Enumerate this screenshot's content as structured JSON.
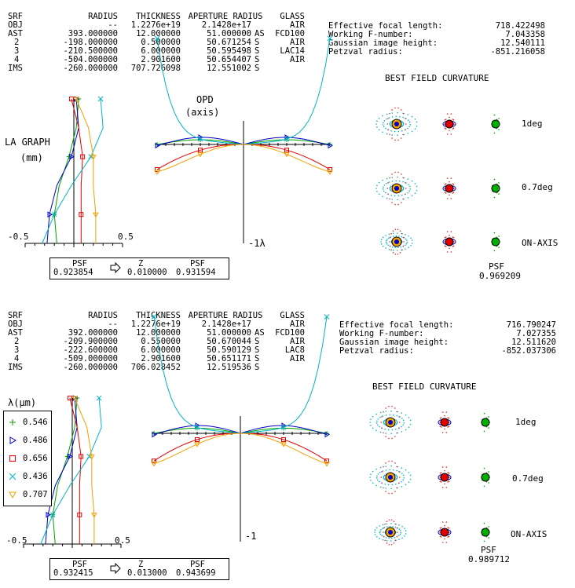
{
  "headers": {
    "srf": "SRF",
    "radius": "RADIUS",
    "thickness": "THICKNESS",
    "aperture": "APERTURE RADIUS",
    "glass": "GLASS"
  },
  "top": {
    "rows": [
      {
        "srf": "OBJ",
        "radius": "--",
        "thickness": "1.2276e+19",
        "aperture": "2.1428e+17",
        "sfx": "",
        "glass": "AIR"
      },
      {
        "srf": "AST",
        "radius": "393.000000",
        "thickness": "12.000000",
        "aperture": "51.000000",
        "sfx": "AS",
        "glass": "FCD100"
      },
      {
        "srf": "2",
        "radius": "-198.000000",
        "thickness": "0.500000",
        "aperture": "50.671254",
        "sfx": "S",
        "glass": "AIR"
      },
      {
        "srf": "3",
        "radius": "-210.500000",
        "thickness": "6.000000",
        "aperture": "50.595498",
        "sfx": "S",
        "glass": "LAC14"
      },
      {
        "srf": "4",
        "radius": "-504.000000",
        "thickness": "2.901600",
        "aperture": "50.654407",
        "sfx": "S",
        "glass": "AIR"
      },
      {
        "srf": "IMS",
        "radius": "-260.000000",
        "thickness": "707.726098",
        "aperture": "12.551002",
        "sfx": "S",
        "glass": ""
      }
    ],
    "summary": [
      {
        "label": "Effective focal length:",
        "value": "718.422498"
      },
      {
        "label": "Working F-number:",
        "value": "7.043358"
      },
      {
        "label": "Gaussian image height:",
        "value": "12.540111"
      },
      {
        "label": "Petzval radius:",
        "value": "-851.216058"
      }
    ],
    "field_title": "BEST FIELD CURVATURE",
    "la_title": "LA GRAPH",
    "la_unit": "(mm)",
    "opd_title": "OPD",
    "opd_sub": "(axis)",
    "axis_left": "-0.5",
    "axis_right": "0.5",
    "opd_scale": "-1λ",
    "field_labels": [
      "1deg",
      "0.7deg",
      "ON-AXIS"
    ],
    "psf_head": {
      "psf1": "PSF",
      "z": "Z",
      "psf2": "PSF"
    },
    "psf_vals": {
      "psf1": "0.923854",
      "z": "0.010000",
      "psf2": "0.931594"
    },
    "psf_right_label": "PSF",
    "psf_right_value": "0.969209"
  },
  "bottom": {
    "rows": [
      {
        "srf": "OBJ",
        "radius": "--",
        "thickness": "1.2276e+19",
        "aperture": "2.1428e+17",
        "sfx": "",
        "glass": "AIR"
      },
      {
        "srf": "AST",
        "radius": "392.000000",
        "thickness": "12.000000",
        "aperture": "51.000000",
        "sfx": "AS",
        "glass": "FCD100"
      },
      {
        "srf": "2",
        "radius": "-209.900000",
        "thickness": "0.550000",
        "aperture": "50.670044",
        "sfx": "S",
        "glass": "AIR"
      },
      {
        "srf": "3",
        "radius": "-222.600000",
        "thickness": "6.000000",
        "aperture": "50.590129",
        "sfx": "S",
        "glass": "LAC8"
      },
      {
        "srf": "4",
        "radius": "-509.000000",
        "thickness": "2.901600",
        "aperture": "50.651171",
        "sfx": "S",
        "glass": "AIR"
      },
      {
        "srf": "IMS",
        "radius": "-260.000000",
        "thickness": "706.028452",
        "aperture": "12.519536",
        "sfx": "S",
        "glass": ""
      }
    ],
    "summary": [
      {
        "label": "Effective focal length:",
        "value": "716.790247"
      },
      {
        "label": "Working F-number:",
        "value": "7.027355"
      },
      {
        "label": "Gaussian image height:",
        "value": "12.511620"
      },
      {
        "label": "Petzval radius:",
        "value": "-852.037306"
      }
    ],
    "field_title": "BEST FIELD CURVATURE",
    "axis_left": "-0.5",
    "axis_right": "0.5",
    "opd_scale": "-1",
    "field_labels": [
      "1deg",
      "0.7deg",
      "ON-AXIS"
    ],
    "psf_head": {
      "psf1": "PSF",
      "z": "Z",
      "psf2": "PSF"
    },
    "psf_vals": {
      "psf1": "0.932415",
      "z": "0.013000",
      "psf2": "0.943699"
    },
    "psf_right_label": "PSF",
    "psf_right_value": "0.989712"
  },
  "legend": {
    "title": "λ(µm)",
    "items": [
      {
        "label": "0.546",
        "marker": "plus",
        "color": "#00a000"
      },
      {
        "label": "0.486",
        "marker": "triangle",
        "color": "#0000c8"
      },
      {
        "label": "0.656",
        "marker": "square",
        "color": "#e00000"
      },
      {
        "label": "0.436",
        "marker": "cross",
        "color": "#00b4c8"
      },
      {
        "label": "0.707",
        "marker": "tri-left",
        "color": "#f0a000"
      }
    ]
  },
  "icons": {
    "psf_arrow": "right-arrow-icon"
  }
}
